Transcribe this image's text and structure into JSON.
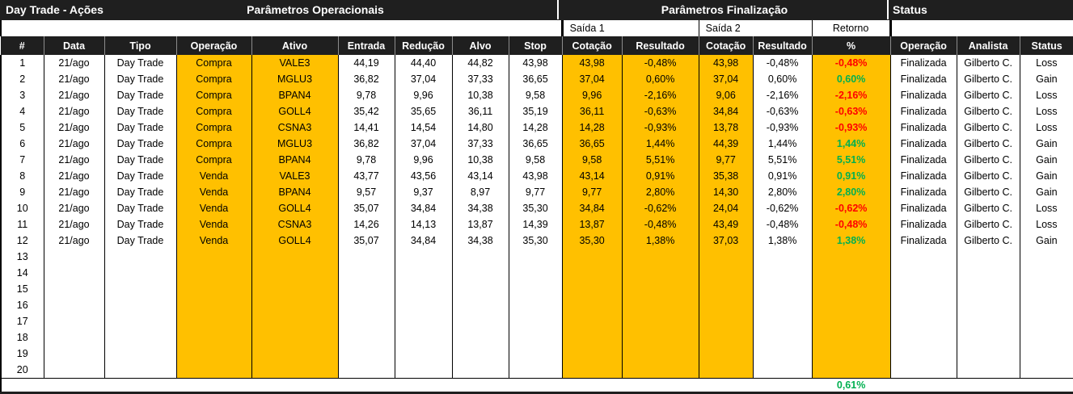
{
  "title_bar": {
    "left_title": "Day Trade - Ações",
    "operational_title": "Parâmetros Operacionais",
    "finalization_title": "Parâmetros Finalização",
    "status_title": "Status"
  },
  "groups": {
    "saida1": "Saída 1",
    "saida2": "Saída 2",
    "retorno": "Retorno"
  },
  "table": {
    "columns": [
      "#",
      "Data",
      "Tipo",
      "Operação",
      "Ativo",
      "Entrada",
      "Redução",
      "Alvo",
      "Stop",
      "Cotação",
      "Resultado",
      "Cotação",
      "Resultado",
      "%",
      "Operação",
      "Analista",
      "Status"
    ],
    "rows": [
      {
        "cells": [
          "1",
          "21/ago",
          "Day Trade",
          "Compra",
          "VALE3",
          "44,19",
          "44,40",
          "44,82",
          "43,98",
          "43,98",
          "-0,48%",
          "43,98",
          "-0,48%",
          "-0,48%",
          "Finalizada",
          "Gilberto C.",
          "Loss"
        ],
        "retorno": "loss"
      },
      {
        "cells": [
          "2",
          "21/ago",
          "Day Trade",
          "Compra",
          "MGLU3",
          "36,82",
          "37,04",
          "37,33",
          "36,65",
          "37,04",
          "0,60%",
          "37,04",
          "0,60%",
          "0,60%",
          "Finalizada",
          "Gilberto C.",
          "Gain"
        ],
        "retorno": "gain"
      },
      {
        "cells": [
          "3",
          "21/ago",
          "Day Trade",
          "Compra",
          "BPAN4",
          "9,78",
          "9,96",
          "10,38",
          "9,58",
          "9,96",
          "-2,16%",
          "9,06",
          "-2,16%",
          "-2,16%",
          "Finalizada",
          "Gilberto C.",
          "Loss"
        ],
        "retorno": "loss"
      },
      {
        "cells": [
          "4",
          "21/ago",
          "Day Trade",
          "Compra",
          "GOLL4",
          "35,42",
          "35,65",
          "36,11",
          "35,19",
          "36,11",
          "-0,63%",
          "34,84",
          "-0,63%",
          "-0,63%",
          "Finalizada",
          "Gilberto C.",
          "Loss"
        ],
        "retorno": "loss"
      },
      {
        "cells": [
          "5",
          "21/ago",
          "Day Trade",
          "Compra",
          "CSNA3",
          "14,41",
          "14,54",
          "14,80",
          "14,28",
          "14,28",
          "-0,93%",
          "13,78",
          "-0,93%",
          "-0,93%",
          "Finalizada",
          "Gilberto C.",
          "Loss"
        ],
        "retorno": "loss"
      },
      {
        "cells": [
          "6",
          "21/ago",
          "Day Trade",
          "Compra",
          "MGLU3",
          "36,82",
          "37,04",
          "37,33",
          "36,65",
          "36,65",
          "1,44%",
          "44,39",
          "1,44%",
          "1,44%",
          "Finalizada",
          "Gilberto C.",
          "Gain"
        ],
        "retorno": "gain"
      },
      {
        "cells": [
          "7",
          "21/ago",
          "Day Trade",
          "Compra",
          "BPAN4",
          "9,78",
          "9,96",
          "10,38",
          "9,58",
          "9,58",
          "5,51%",
          "9,77",
          "5,51%",
          "5,51%",
          "Finalizada",
          "Gilberto C.",
          "Gain"
        ],
        "retorno": "gain"
      },
      {
        "cells": [
          "8",
          "21/ago",
          "Day Trade",
          "Venda",
          "VALE3",
          "43,77",
          "43,56",
          "43,14",
          "43,98",
          "43,14",
          "0,91%",
          "35,38",
          "0,91%",
          "0,91%",
          "Finalizada",
          "Gilberto C.",
          "Gain"
        ],
        "retorno": "gain"
      },
      {
        "cells": [
          "9",
          "21/ago",
          "Day Trade",
          "Venda",
          "BPAN4",
          "9,57",
          "9,37",
          "8,97",
          "9,77",
          "9,77",
          "2,80%",
          "14,30",
          "2,80%",
          "2,80%",
          "Finalizada",
          "Gilberto C.",
          "Gain"
        ],
        "retorno": "gain"
      },
      {
        "cells": [
          "10",
          "21/ago",
          "Day Trade",
          "Venda",
          "GOLL4",
          "35,07",
          "34,84",
          "34,38",
          "35,30",
          "34,84",
          "-0,62%",
          "24,04",
          "-0,62%",
          "-0,62%",
          "Finalizada",
          "Gilberto C.",
          "Loss"
        ],
        "retorno": "loss"
      },
      {
        "cells": [
          "11",
          "21/ago",
          "Day Trade",
          "Venda",
          "CSNA3",
          "14,26",
          "14,13",
          "13,87",
          "14,39",
          "13,87",
          "-0,48%",
          "43,49",
          "-0,48%",
          "-0,48%",
          "Finalizada",
          "Gilberto C.",
          "Loss"
        ],
        "retorno": "loss"
      },
      {
        "cells": [
          "12",
          "21/ago",
          "Day Trade",
          "Venda",
          "GOLL4",
          "35,07",
          "34,84",
          "34,38",
          "35,30",
          "35,30",
          "1,38%",
          "37,03",
          "1,38%",
          "1,38%",
          "Finalizada",
          "Gilberto C.",
          "Gain"
        ],
        "retorno": "gain"
      },
      {
        "cells": [
          "13",
          "",
          "",
          "",
          "",
          "",
          "",
          "",
          "",
          "",
          "",
          "",
          "",
          "",
          "",
          "",
          ""
        ]
      },
      {
        "cells": [
          "14",
          "",
          "",
          "",
          "",
          "",
          "",
          "",
          "",
          "",
          "",
          "",
          "",
          "",
          "",
          "",
          ""
        ]
      },
      {
        "cells": [
          "15",
          "",
          "",
          "",
          "",
          "",
          "",
          "",
          "",
          "",
          "",
          "",
          "",
          "",
          "",
          "",
          ""
        ]
      },
      {
        "cells": [
          "16",
          "",
          "",
          "",
          "",
          "",
          "",
          "",
          "",
          "",
          "",
          "",
          "",
          "",
          "",
          "",
          ""
        ]
      },
      {
        "cells": [
          "17",
          "",
          "",
          "",
          "",
          "",
          "",
          "",
          "",
          "",
          "",
          "",
          "",
          "",
          "",
          "",
          ""
        ]
      },
      {
        "cells": [
          "18",
          "",
          "",
          "",
          "",
          "",
          "",
          "",
          "",
          "",
          "",
          "",
          "",
          "",
          "",
          "",
          ""
        ]
      },
      {
        "cells": [
          "19",
          "",
          "",
          "",
          "",
          "",
          "",
          "",
          "",
          "",
          "",
          "",
          "",
          "",
          "",
          "",
          ""
        ]
      },
      {
        "cells": [
          "20",
          "",
          "",
          "",
          "",
          "",
          "",
          "",
          "",
          "",
          "",
          "",
          "",
          "",
          "",
          "",
          ""
        ]
      }
    ]
  },
  "footer": {
    "total_return": "0,61%"
  },
  "colors": {
    "accent_orange": "#FFC000",
    "gain_green": "#00B050",
    "loss_red": "#FF0000",
    "header_black": "#1F1F1F"
  }
}
